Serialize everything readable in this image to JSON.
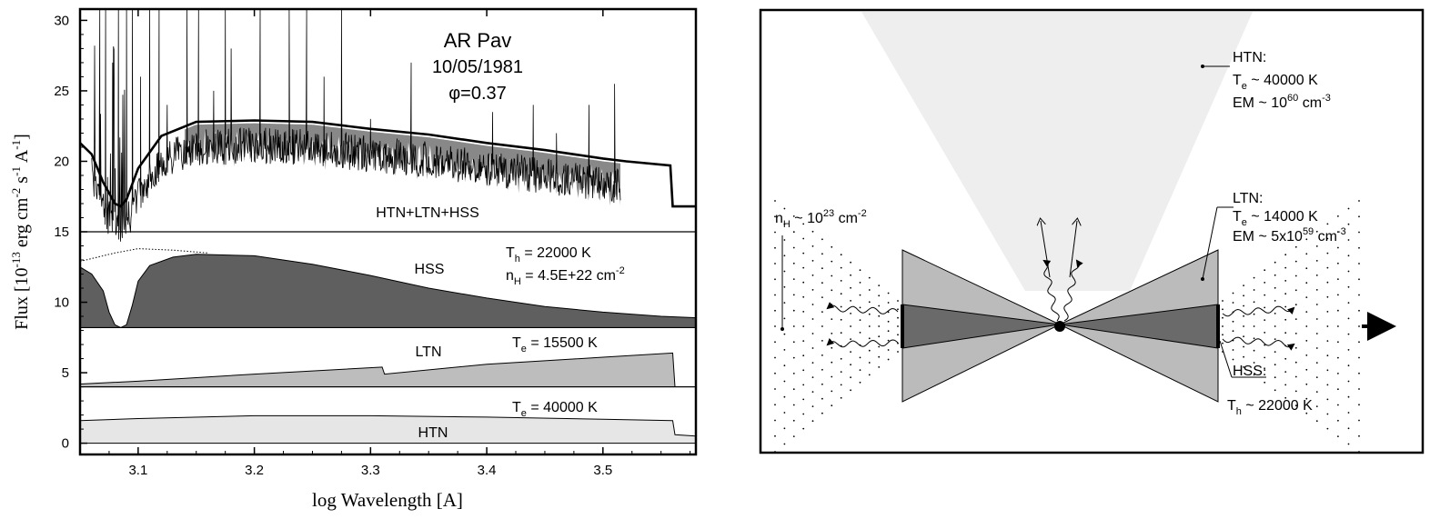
{
  "chart_data": [
    {
      "type": "line",
      "title": "AR Pav",
      "date": "10/05/1981",
      "phase": "φ=0.37",
      "xlabel": "log Wavelength [A]",
      "ylabel": "Flux [10",
      "ylabel_exp1": "-13",
      "ylabel_mid": " erg cm",
      "ylabel_exp2": "-2",
      "ylabel_s": " s",
      "ylabel_exp3": "-1",
      "ylabel_A": " A",
      "ylabel_exp4": "-1",
      "ylabel_end": "]",
      "x_ticks": [
        "3.1",
        "3.2",
        "3.3",
        "3.4",
        "3.5"
      ],
      "x_tick_values": [
        3.1,
        3.2,
        3.3,
        3.4,
        3.5
      ],
      "y_ticks": [
        "0",
        "5",
        "10",
        "15",
        "20",
        "25",
        "30"
      ],
      "y_tick_values": [
        0,
        5,
        10,
        15,
        20,
        25,
        30
      ],
      "xlim": [
        3.05,
        3.58
      ],
      "ylim": [
        -0.8,
        30.8
      ],
      "panels": [
        {
          "name": "HTN+LTN+HSS",
          "label": "HTN+LTN+HSS",
          "model": {
            "x": [
              3.05,
              3.06,
              3.07,
              3.08,
              3.085,
              3.09,
              3.1,
              3.12,
              3.15,
              3.2,
              3.25,
              3.3,
              3.35,
              3.4,
              3.45,
              3.5,
              3.52,
              3.558,
              3.56,
              3.58
            ],
            "y": [
              21.3,
              20.5,
              18.5,
              17.0,
              16.8,
              17.3,
              19.5,
              21.8,
              22.8,
              22.9,
              22.8,
              22.3,
              21.9,
              21.3,
              20.8,
              20.2,
              20.0,
              19.7,
              16.8,
              16.8
            ]
          },
          "observed_range": [
            3.06,
            3.515
          ]
        },
        {
          "name": "HSS",
          "label": "HSS",
          "param1_main": "T",
          "param1_sub": "h",
          "param1_val": " = 22000 K",
          "param2_main": "n",
          "param2_sub": "H",
          "param2_val": " = 4.5E+22 cm",
          "param2_exp": "-2",
          "baseline": 8.2,
          "x": [
            3.05,
            3.06,
            3.07,
            3.075,
            3.08,
            3.085,
            3.09,
            3.095,
            3.1,
            3.11,
            3.13,
            3.15,
            3.2,
            3.25,
            3.3,
            3.35,
            3.4,
            3.45,
            3.5,
            3.55,
            3.58
          ],
          "y": [
            12.5,
            12.0,
            10.8,
            9.3,
            8.4,
            8.2,
            8.4,
            9.8,
            11.5,
            12.6,
            13.2,
            13.4,
            13.3,
            12.7,
            11.9,
            11.0,
            10.3,
            9.7,
            9.3,
            9.0,
            8.9
          ],
          "dotted_x": [
            3.05,
            3.08,
            3.1,
            3.13,
            3.16
          ],
          "dotted_y": [
            12.9,
            13.5,
            13.8,
            13.7,
            13.5
          ]
        },
        {
          "name": "LTN",
          "label": "LTN",
          "param_main": "T",
          "param_sub": "e",
          "param_val": " = 15500 K",
          "baseline": 4.0,
          "x": [
            3.05,
            3.1,
            3.2,
            3.31,
            3.312,
            3.4,
            3.5,
            3.56,
            3.562,
            3.58
          ],
          "y": [
            4.2,
            4.4,
            4.9,
            5.4,
            4.9,
            5.6,
            6.1,
            6.4,
            4.0,
            4.0
          ]
        },
        {
          "name": "HTN",
          "label": "HTN",
          "param_main": "T",
          "param_sub": "e",
          "param_val": " = 40000 K",
          "baseline": 0.0,
          "x": [
            3.05,
            3.1,
            3.2,
            3.3,
            3.4,
            3.5,
            3.56,
            3.562,
            3.58
          ],
          "y": [
            1.6,
            1.75,
            1.95,
            1.95,
            1.85,
            1.7,
            1.6,
            0.6,
            0.5
          ]
        }
      ],
      "colors": {
        "hss_fill": "#5f5f5f",
        "ltn_fill": "#bdbdbd",
        "htn_fill": "#e6e6e6",
        "line": "#000000"
      }
    }
  ],
  "diagram": {
    "htn": {
      "title": "HTN:",
      "temp_main": "T",
      "temp_sub": "e",
      "temp_val": " ~ 40000 K",
      "em_prefix": "EM ~ 10",
      "em_exp": "60",
      "em_unit": " cm",
      "em_unit_exp": "-3"
    },
    "ltn": {
      "title": "LTN:",
      "temp_main": "T",
      "temp_sub": "e",
      "temp_val": " ~ 14000 K",
      "em_prefix": "EM ~ 5x10",
      "em_exp": "59",
      "em_unit": " cm",
      "em_unit_exp": "-3"
    },
    "hss": {
      "title": "HSS:",
      "temp_main": "T",
      "temp_sub": "h",
      "temp_val": " ~ 22000 K"
    },
    "nh": {
      "main": "n",
      "sub": "H",
      "val": " ~ 10",
      "exp": "23",
      "unit": " cm",
      "unit_exp": "-2"
    },
    "colors": {
      "cone": "#eeeeee",
      "outer_disk": "#bbbbbb",
      "inner_disk": "#6a6a6a"
    }
  }
}
